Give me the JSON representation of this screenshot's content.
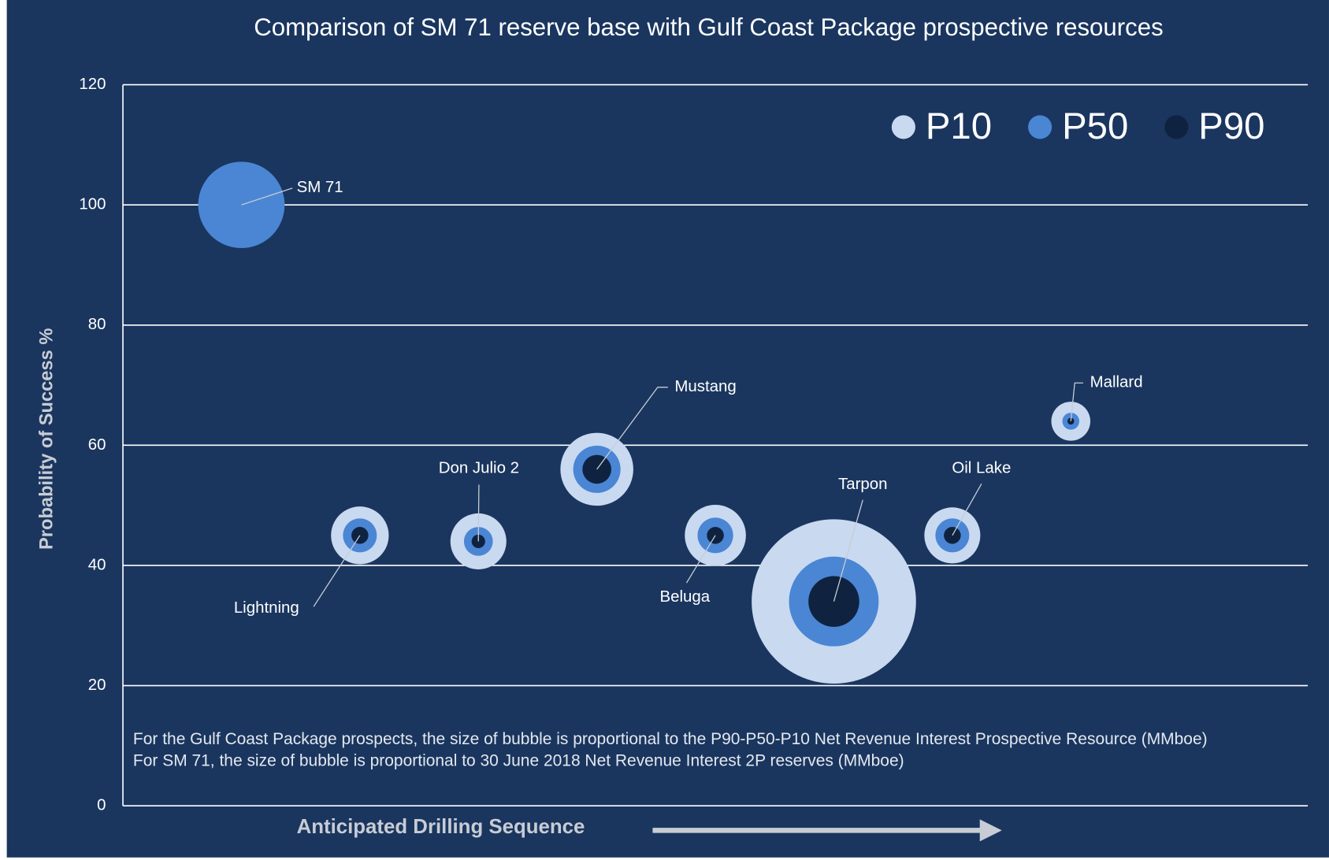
{
  "chart_data": {
    "type": "bubble",
    "title": "Comparison of SM 71 reserve base with Gulf Coast Package prospective resources",
    "y_label": "Probability of Success %",
    "x_label": "Anticipated Drilling Sequence",
    "notes": [
      "For the Gulf Coast Package prospects, the size of bubble is proportional to the P90-P50-P10 Net Revenue Interest Prospective Resource (MMboe)",
      "For SM 71, the size of bubble is proportional to 30 June 2018 Net Revenue Interest 2P reserves (MMboe)"
    ],
    "labels": [
      "SM 71",
      "Lightning",
      "Don Julio 2",
      "Mustang",
      "Beluga",
      "Tarpon",
      "Oil Lake",
      "Mallard"
    ],
    "x": [
      1,
      2,
      3,
      4,
      5,
      6,
      7,
      8
    ],
    "y": [
      100,
      45,
      44,
      56,
      45,
      34,
      45,
      64
    ],
    "xlim": [
      0,
      10
    ],
    "ylim": [
      0,
      120
    ],
    "yticks": [
      0,
      20,
      40,
      60,
      80,
      100,
      120
    ],
    "grid": true,
    "legend": "top-right",
    "series": [
      {
        "name": "P10",
        "color": "#c9d9f0",
        "sizes": [
          null,
          11.6,
          10.9,
          18.5,
          13,
          94,
          10.9,
          5.3
        ]
      },
      {
        "name": "P50",
        "color": "#4a86d4",
        "sizes": [
          26,
          4,
          2.9,
          7.8,
          4.4,
          28,
          4,
          1
        ]
      },
      {
        "name": "P90",
        "color": "#0f2340",
        "sizes": [
          null,
          1,
          0.64,
          2.9,
          1,
          9,
          1,
          0.16
        ]
      }
    ]
  }
}
